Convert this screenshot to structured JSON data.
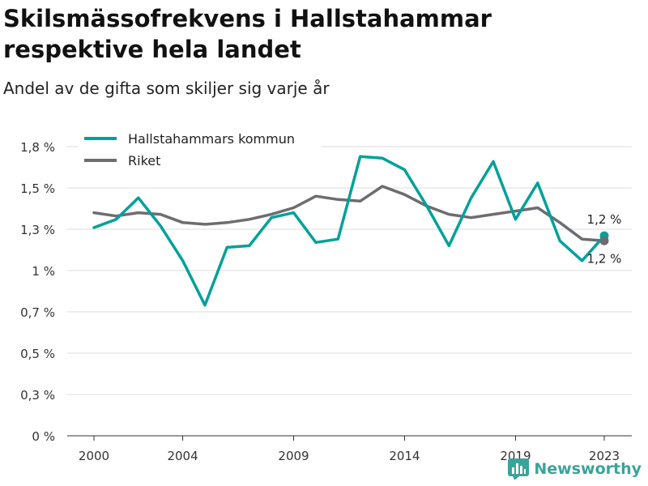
{
  "header": {
    "title": "Skilsmässofrekvens i Hallstahammar respektive hela landet",
    "subtitle": "Andel av de gifta som skiljer sig varje år"
  },
  "brand": {
    "name": "Newsworthy",
    "color": "#3aa39a"
  },
  "chart_data": {
    "type": "line",
    "title": "Skilsmässofrekvens i Hallstahammar respektive hela landet",
    "subtitle": "Andel av de gifta som skiljer sig varje år",
    "x": [
      2000,
      2001,
      2002,
      2003,
      2004,
      2005,
      2006,
      2007,
      2008,
      2009,
      2010,
      2011,
      2012,
      2013,
      2014,
      2015,
      2016,
      2017,
      2018,
      2019,
      2020,
      2021,
      2022,
      2023
    ],
    "xticks": [
      2000,
      2004,
      2009,
      2014,
      2019,
      2023
    ],
    "xtick_labels": [
      "2000",
      "2004",
      "2009",
      "2014",
      "2019",
      "2023"
    ],
    "ylim": [
      0,
      1.75
    ],
    "yticks": [
      0,
      0.25,
      0.5,
      0.75,
      1.0,
      1.25,
      1.5,
      1.75
    ],
    "ytick_labels": [
      "0 %",
      "0,3 %",
      "0,5 %",
      "0,7 %",
      "1 %",
      "1,3 %",
      "1,5 %",
      "1,8 %"
    ],
    "grid": true,
    "legend_position": "top-left",
    "series": [
      {
        "name": "Hallstahammars kommun",
        "color": "#00a19a",
        "values": [
          1.26,
          1.31,
          1.44,
          1.27,
          1.06,
          0.79,
          1.14,
          1.15,
          1.32,
          1.35,
          1.17,
          1.19,
          1.69,
          1.68,
          1.61,
          1.39,
          1.15,
          1.44,
          1.66,
          1.31,
          1.53,
          1.18,
          1.06,
          1.21
        ],
        "end_label": "1,2 %"
      },
      {
        "name": "Riket",
        "color": "#6e6c70",
        "values": [
          1.35,
          1.33,
          1.35,
          1.34,
          1.29,
          1.28,
          1.29,
          1.31,
          1.34,
          1.38,
          1.45,
          1.43,
          1.42,
          1.51,
          1.46,
          1.39,
          1.34,
          1.32,
          1.34,
          1.36,
          1.38,
          1.29,
          1.19,
          1.18
        ],
        "end_label": "1,2 %"
      }
    ]
  }
}
